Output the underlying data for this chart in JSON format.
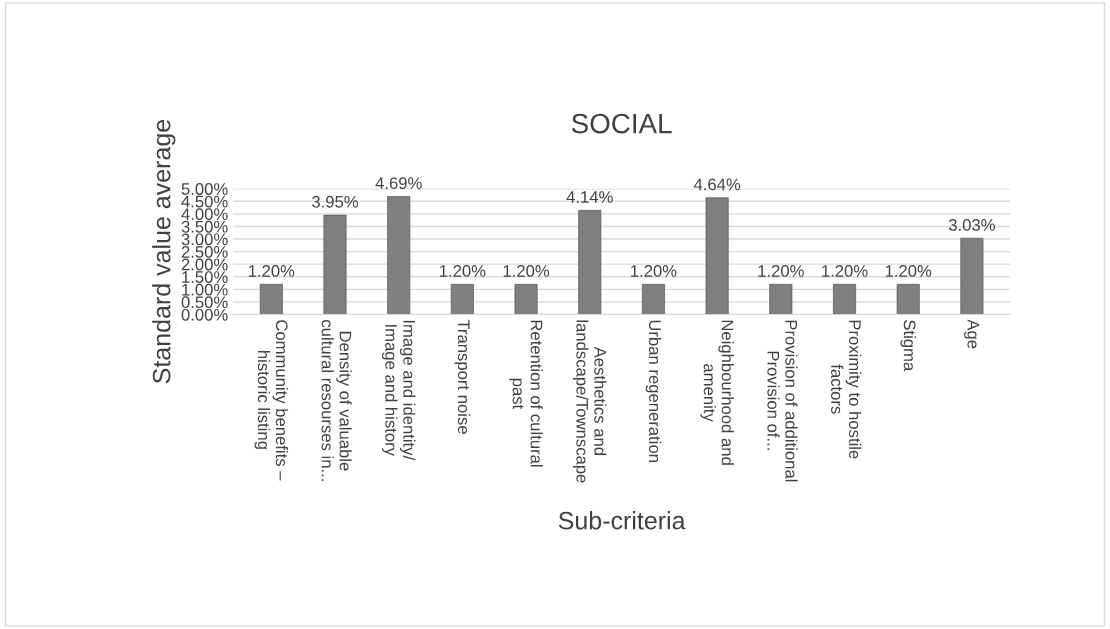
{
  "chart_data": {
    "type": "bar",
    "title": "SOCIAL",
    "xlabel": "Sub-criteria",
    "ylabel": "Standard value average",
    "categories": [
      "Community benefits –\nhistoric listing",
      "Density of valuable\ncultural resourses in...",
      "Image and identity/\nImage and history",
      "Transport noise",
      "Retention of cultural\npast",
      "Aesthetics and\nlandscape/Townscape",
      "Urban regeneration",
      "Neighbourhood and\namenity",
      "Provision of additional\nProvision of...",
      "Proximity to hostile\nfactors",
      "Stigma",
      "Age"
    ],
    "values": [
      1.2,
      3.95,
      4.69,
      1.2,
      1.2,
      4.14,
      1.2,
      4.64,
      1.2,
      1.2,
      1.2,
      3.03
    ],
    "value_labels": [
      "1.20%",
      "3.95%",
      "4.69%",
      "1.20%",
      "1.20%",
      "4.14%",
      "1.20%",
      "4.64%",
      "1.20%",
      "1.20%",
      "1.20%",
      "3.03%"
    ],
    "color": "#7f7f7f",
    "ylim": [
      0,
      5
    ],
    "yticks": [
      {
        "value": 0,
        "label": "0.00%"
      },
      {
        "value": 0.5,
        "label": "0.50%"
      },
      {
        "value": 1,
        "label": "1.00%"
      },
      {
        "value": 1.5,
        "label": "1.50%"
      },
      {
        "value": 2,
        "label": "2.00%"
      },
      {
        "value": 2.5,
        "label": "2.50%"
      },
      {
        "value": 3,
        "label": "3.00%"
      },
      {
        "value": 3.5,
        "label": "3.50%"
      },
      {
        "value": 4,
        "label": "4.00%"
      },
      {
        "value": 4.5,
        "label": "4.50%"
      },
      {
        "value": 5,
        "label": "5.00%"
      }
    ],
    "grid": "y"
  }
}
